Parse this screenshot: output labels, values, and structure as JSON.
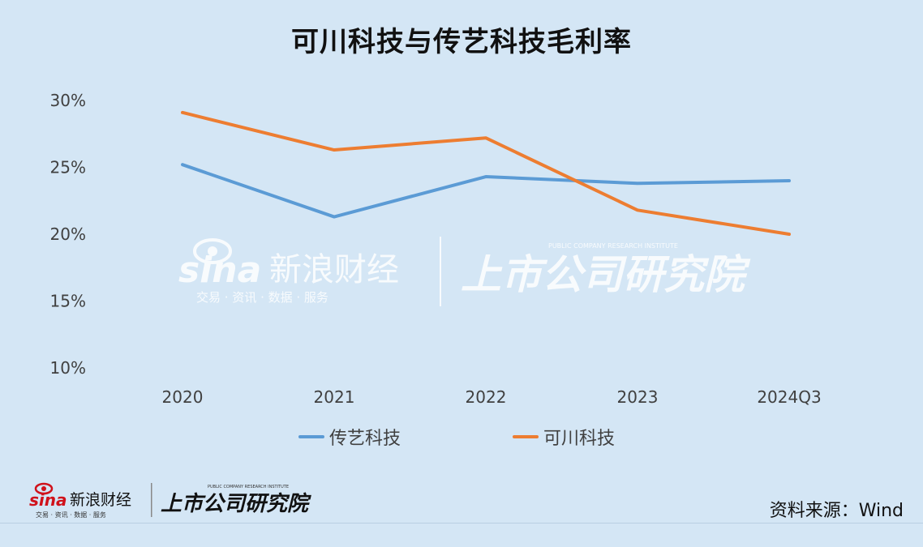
{
  "title": "可川科技与传艺科技毛利率",
  "source": "资料来源：Wind",
  "watermark": {
    "sina_brand": "sina",
    "sina_cn": "新浪财经",
    "sina_tagline": "交易 · 资讯 · 数据 · 服务",
    "institute_cn": "上市公司研究院",
    "institute_en": "PUBLIC COMPANY RESEARCH INSTITUTE"
  },
  "colors": {
    "background": "#d4e6f5",
    "series_chuanyi": "#5b9bd5",
    "series_kechuan": "#ed7d31",
    "watermark": "#ffffff"
  },
  "chart_data": {
    "type": "line",
    "title": "可川科技与传艺科技毛利率",
    "categories": [
      "2020",
      "2021",
      "2022",
      "2023",
      "2024Q3"
    ],
    "series": [
      {
        "name": "传艺科技",
        "values": [
          25.2,
          21.3,
          24.3,
          23.8,
          24.0
        ],
        "color": "#5b9bd5"
      },
      {
        "name": "可川科技",
        "values": [
          29.1,
          26.3,
          27.2,
          21.8,
          20.0
        ],
        "color": "#ed7d31"
      }
    ],
    "y_ticks": [
      "10%",
      "15%",
      "20%",
      "25%",
      "30%"
    ],
    "y_tick_values": [
      10,
      15,
      20,
      25,
      30
    ],
    "ylim": [
      10,
      30
    ],
    "y_unit": "%",
    "grid": false,
    "legend_position": "bottom"
  }
}
